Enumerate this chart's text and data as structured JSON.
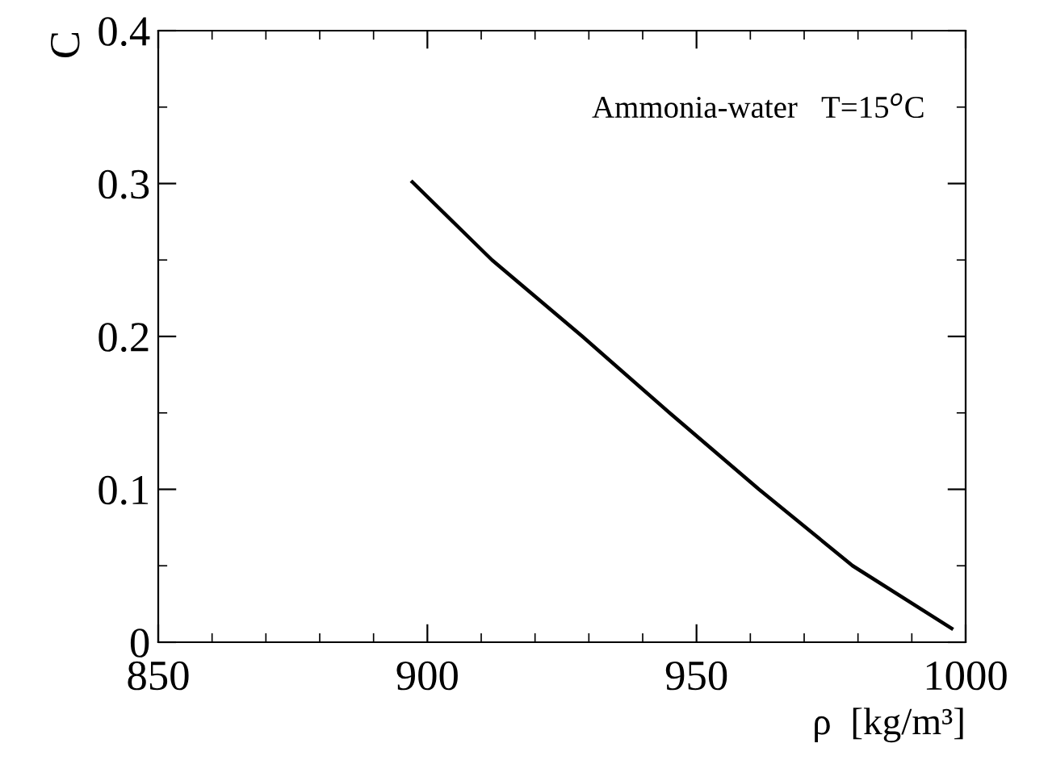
{
  "chart_data": {
    "type": "line",
    "xlabel": "ρ  [kg/m³]",
    "ylabel": "C",
    "annotations": [
      "Ammonia-water   T=15$^{o}$C"
    ],
    "x": [
      897.2,
      912,
      928.8,
      945,
      961.6,
      979,
      997.4
    ],
    "series": [
      {
        "color": "#000000",
        "values": [
          0.301,
          0.25,
          0.2,
          0.15,
          0.1,
          0.05,
          0.009
        ]
      }
    ],
    "xlim": [
      850,
      1000
    ],
    "ylim": [
      0,
      0.4
    ],
    "xticks": [
      850,
      900,
      950,
      1000
    ],
    "yticks": [
      0,
      0.1,
      0.2,
      0.3,
      0.4
    ],
    "grid": false,
    "legend": false,
    "marker": "none",
    "line_style": "solid"
  }
}
